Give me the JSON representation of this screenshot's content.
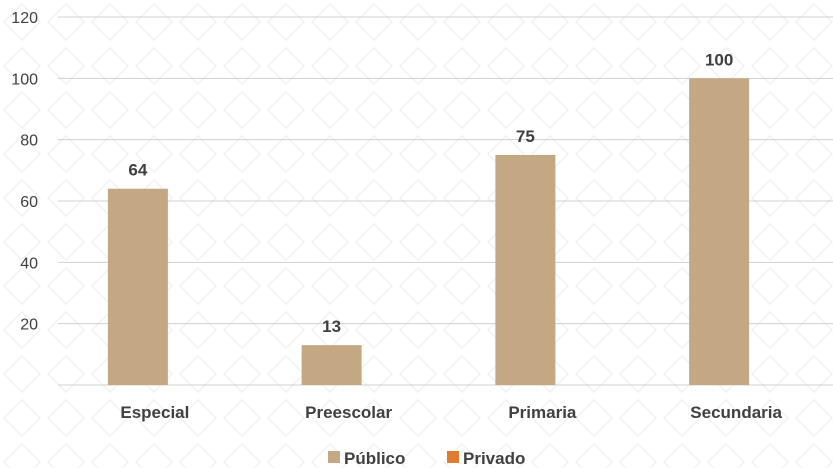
{
  "chart_data": {
    "type": "bar",
    "categories": [
      "Especial",
      "Preescolar",
      "Primaria",
      "Secundaria"
    ],
    "series": [
      {
        "name": "Público",
        "color": "#c4a883",
        "values": [
          64,
          13,
          75,
          100
        ]
      },
      {
        "name": "Privado",
        "color": "#e07b30",
        "values": [
          null,
          null,
          null,
          null
        ]
      }
    ],
    "data_labels": [
      "64",
      "13",
      "75",
      "100"
    ],
    "yticks": [
      "20",
      "40",
      "60",
      "80",
      "100",
      "120"
    ],
    "ylim": [
      0,
      120
    ],
    "grid": true,
    "legend_position": "bottom-center",
    "title": "",
    "xlabel": "",
    "ylabel": ""
  }
}
